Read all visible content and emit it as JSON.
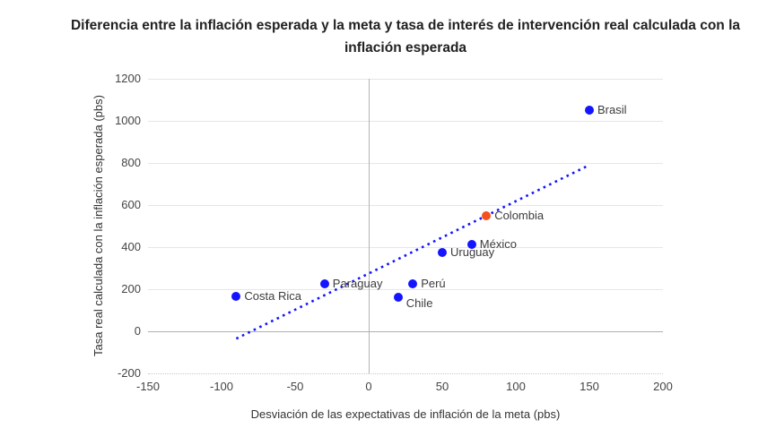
{
  "title": {
    "line1": "Diferencia entre la inflación esperada y la meta y tasa de interés de intervención real calculada con la",
    "line2": "inflación esperada"
  },
  "chart_data": {
    "type": "scatter",
    "title": "Diferencia entre la inflación esperada y la meta y tasa de interés de intervención real calculada con la inflación esperada",
    "xlabel": "Desviación de las expectativas de inflación de la meta (pbs)",
    "ylabel": "Tasa real calculada con la inflación esperada (pbs)",
    "xlim": [
      -150,
      200
    ],
    "ylim": [
      -200,
      1200
    ],
    "x_ticks": [
      -150,
      -100,
      -50,
      0,
      50,
      100,
      150,
      200
    ],
    "y_ticks": [
      1200,
      1000,
      800,
      600,
      400,
      200,
      0,
      -200
    ],
    "grid": true,
    "legend_position": "none",
    "points": [
      {
        "label": "Brasil",
        "x": 150,
        "y": 1050,
        "color": "#1414ff"
      },
      {
        "label": "Colombia",
        "x": 80,
        "y": 550,
        "color": "#f4511e"
      },
      {
        "label": "México",
        "x": 70,
        "y": 415,
        "color": "#1414ff"
      },
      {
        "label": "Uruguay",
        "x": 50,
        "y": 375,
        "color": "#1414ff"
      },
      {
        "label": "Perú",
        "x": 30,
        "y": 225,
        "color": "#1414ff"
      },
      {
        "label": "Chile",
        "x": 20,
        "y": 160,
        "color": "#1414ff",
        "label_dy": 7
      },
      {
        "label": "Paraguay",
        "x": -30,
        "y": 225,
        "color": "#1414ff"
      },
      {
        "label": "Costa Rica",
        "x": -90,
        "y": 165,
        "color": "#1414ff"
      }
    ],
    "trendline": {
      "x1": -90,
      "y1": -35,
      "x2": 150,
      "y2": 790,
      "color": "#1414ff",
      "style": "dotted"
    }
  },
  "colors": {
    "point_blue": "#1414ff",
    "point_orange": "#f4511e",
    "gridline": "#e6e6e6",
    "zero_line": "#b0b0b0",
    "tick_text": "#444444",
    "label_text": "#3c3c3c"
  }
}
